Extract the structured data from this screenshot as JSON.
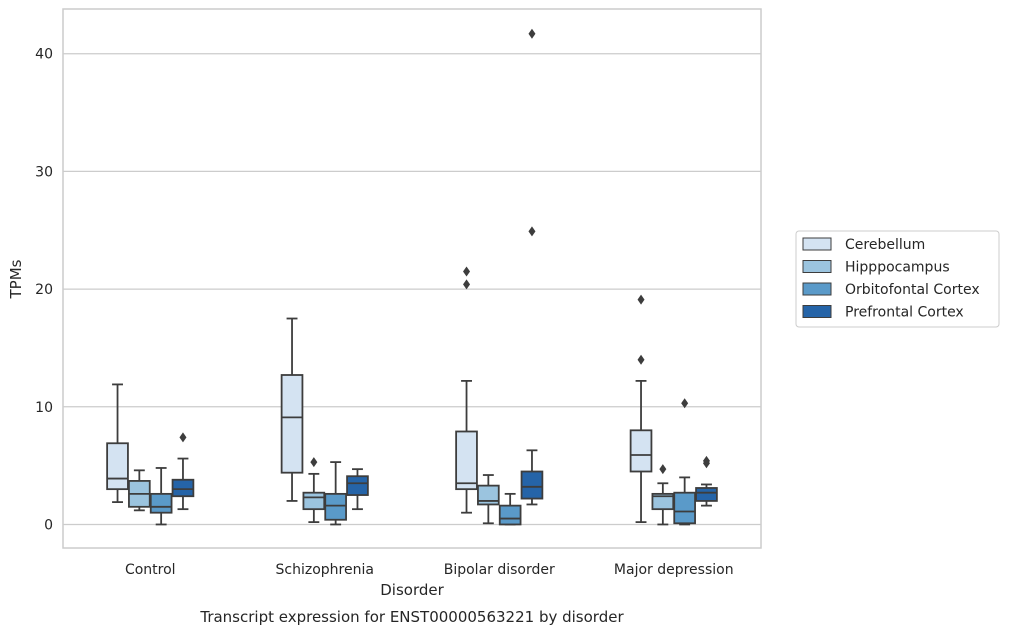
{
  "chart_data": {
    "type": "box",
    "title": "Transcript expression for ENST00000563221 by disorder",
    "xlabel": "Disorder",
    "ylabel": "TPMs",
    "ylim": [
      -2,
      43.8
    ],
    "yticks": [
      0,
      10,
      20,
      30,
      40
    ],
    "grid": "horizontal",
    "legend_position": "right",
    "categories": [
      "Control",
      "Schizophrenia",
      "Bipolar disorder",
      "Major depression"
    ],
    "series": [
      {
        "name": "Cerebellum",
        "color": "#d4e3f2",
        "boxes": [
          {
            "whislo": 1.9,
            "q1": 3.0,
            "med": 3.9,
            "q3": 6.9,
            "whishi": 11.9,
            "fliers": []
          },
          {
            "whislo": 2.0,
            "q1": 4.4,
            "med": 9.1,
            "q3": 12.7,
            "whishi": 17.5,
            "fliers": []
          },
          {
            "whislo": 1.0,
            "q1": 3.0,
            "med": 3.5,
            "q3": 7.9,
            "whishi": 12.2,
            "fliers": [
              21.5,
              20.4
            ]
          },
          {
            "whislo": 0.2,
            "q1": 4.5,
            "med": 5.9,
            "q3": 8.0,
            "whishi": 12.2,
            "fliers": [
              19.1,
              14.0
            ]
          }
        ]
      },
      {
        "name": "Hipppocampus",
        "color": "#9bc4df",
        "boxes": [
          {
            "whislo": 1.2,
            "q1": 1.5,
            "med": 2.6,
            "q3": 3.7,
            "whishi": 4.6,
            "fliers": []
          },
          {
            "whislo": 0.2,
            "q1": 1.3,
            "med": 2.3,
            "q3": 2.7,
            "whishi": 4.3,
            "fliers": [
              5.3
            ]
          },
          {
            "whislo": 0.1,
            "q1": 1.7,
            "med": 2.0,
            "q3": 3.3,
            "whishi": 4.2,
            "fliers": []
          },
          {
            "whislo": 0.0,
            "q1": 1.3,
            "med": 2.4,
            "q3": 2.6,
            "whishi": 3.5,
            "fliers": [
              4.7
            ]
          }
        ]
      },
      {
        "name": "Orbitofontal Cortex",
        "color": "#5a9ac9",
        "boxes": [
          {
            "whislo": 0.0,
            "q1": 1.0,
            "med": 1.5,
            "q3": 2.6,
            "whishi": 4.8,
            "fliers": []
          },
          {
            "whislo": 0.0,
            "q1": 0.4,
            "med": 1.6,
            "q3": 2.6,
            "whishi": 5.3,
            "fliers": []
          },
          {
            "whislo": 0.0,
            "q1": 0.0,
            "med": 0.5,
            "q3": 1.6,
            "whishi": 2.6,
            "fliers": []
          },
          {
            "whislo": 0.0,
            "q1": 0.1,
            "med": 1.1,
            "q3": 2.7,
            "whishi": 4.0,
            "fliers": [
              10.3
            ]
          }
        ]
      },
      {
        "name": "Prefrontal Cortex",
        "color": "#2564a8",
        "boxes": [
          {
            "whislo": 1.3,
            "q1": 2.4,
            "med": 3.0,
            "q3": 3.8,
            "whishi": 5.6,
            "fliers": [
              7.4
            ]
          },
          {
            "whislo": 1.3,
            "q1": 2.5,
            "med": 3.5,
            "q3": 4.1,
            "whishi": 4.7,
            "fliers": []
          },
          {
            "whislo": 1.7,
            "q1": 2.2,
            "med": 3.2,
            "q3": 4.5,
            "whishi": 6.3,
            "fliers": [
              41.7,
              24.9
            ]
          },
          {
            "whislo": 1.6,
            "q1": 2.0,
            "med": 2.7,
            "q3": 3.1,
            "whishi": 3.4,
            "fliers": [
              5.2,
              5.4
            ]
          }
        ]
      }
    ]
  }
}
